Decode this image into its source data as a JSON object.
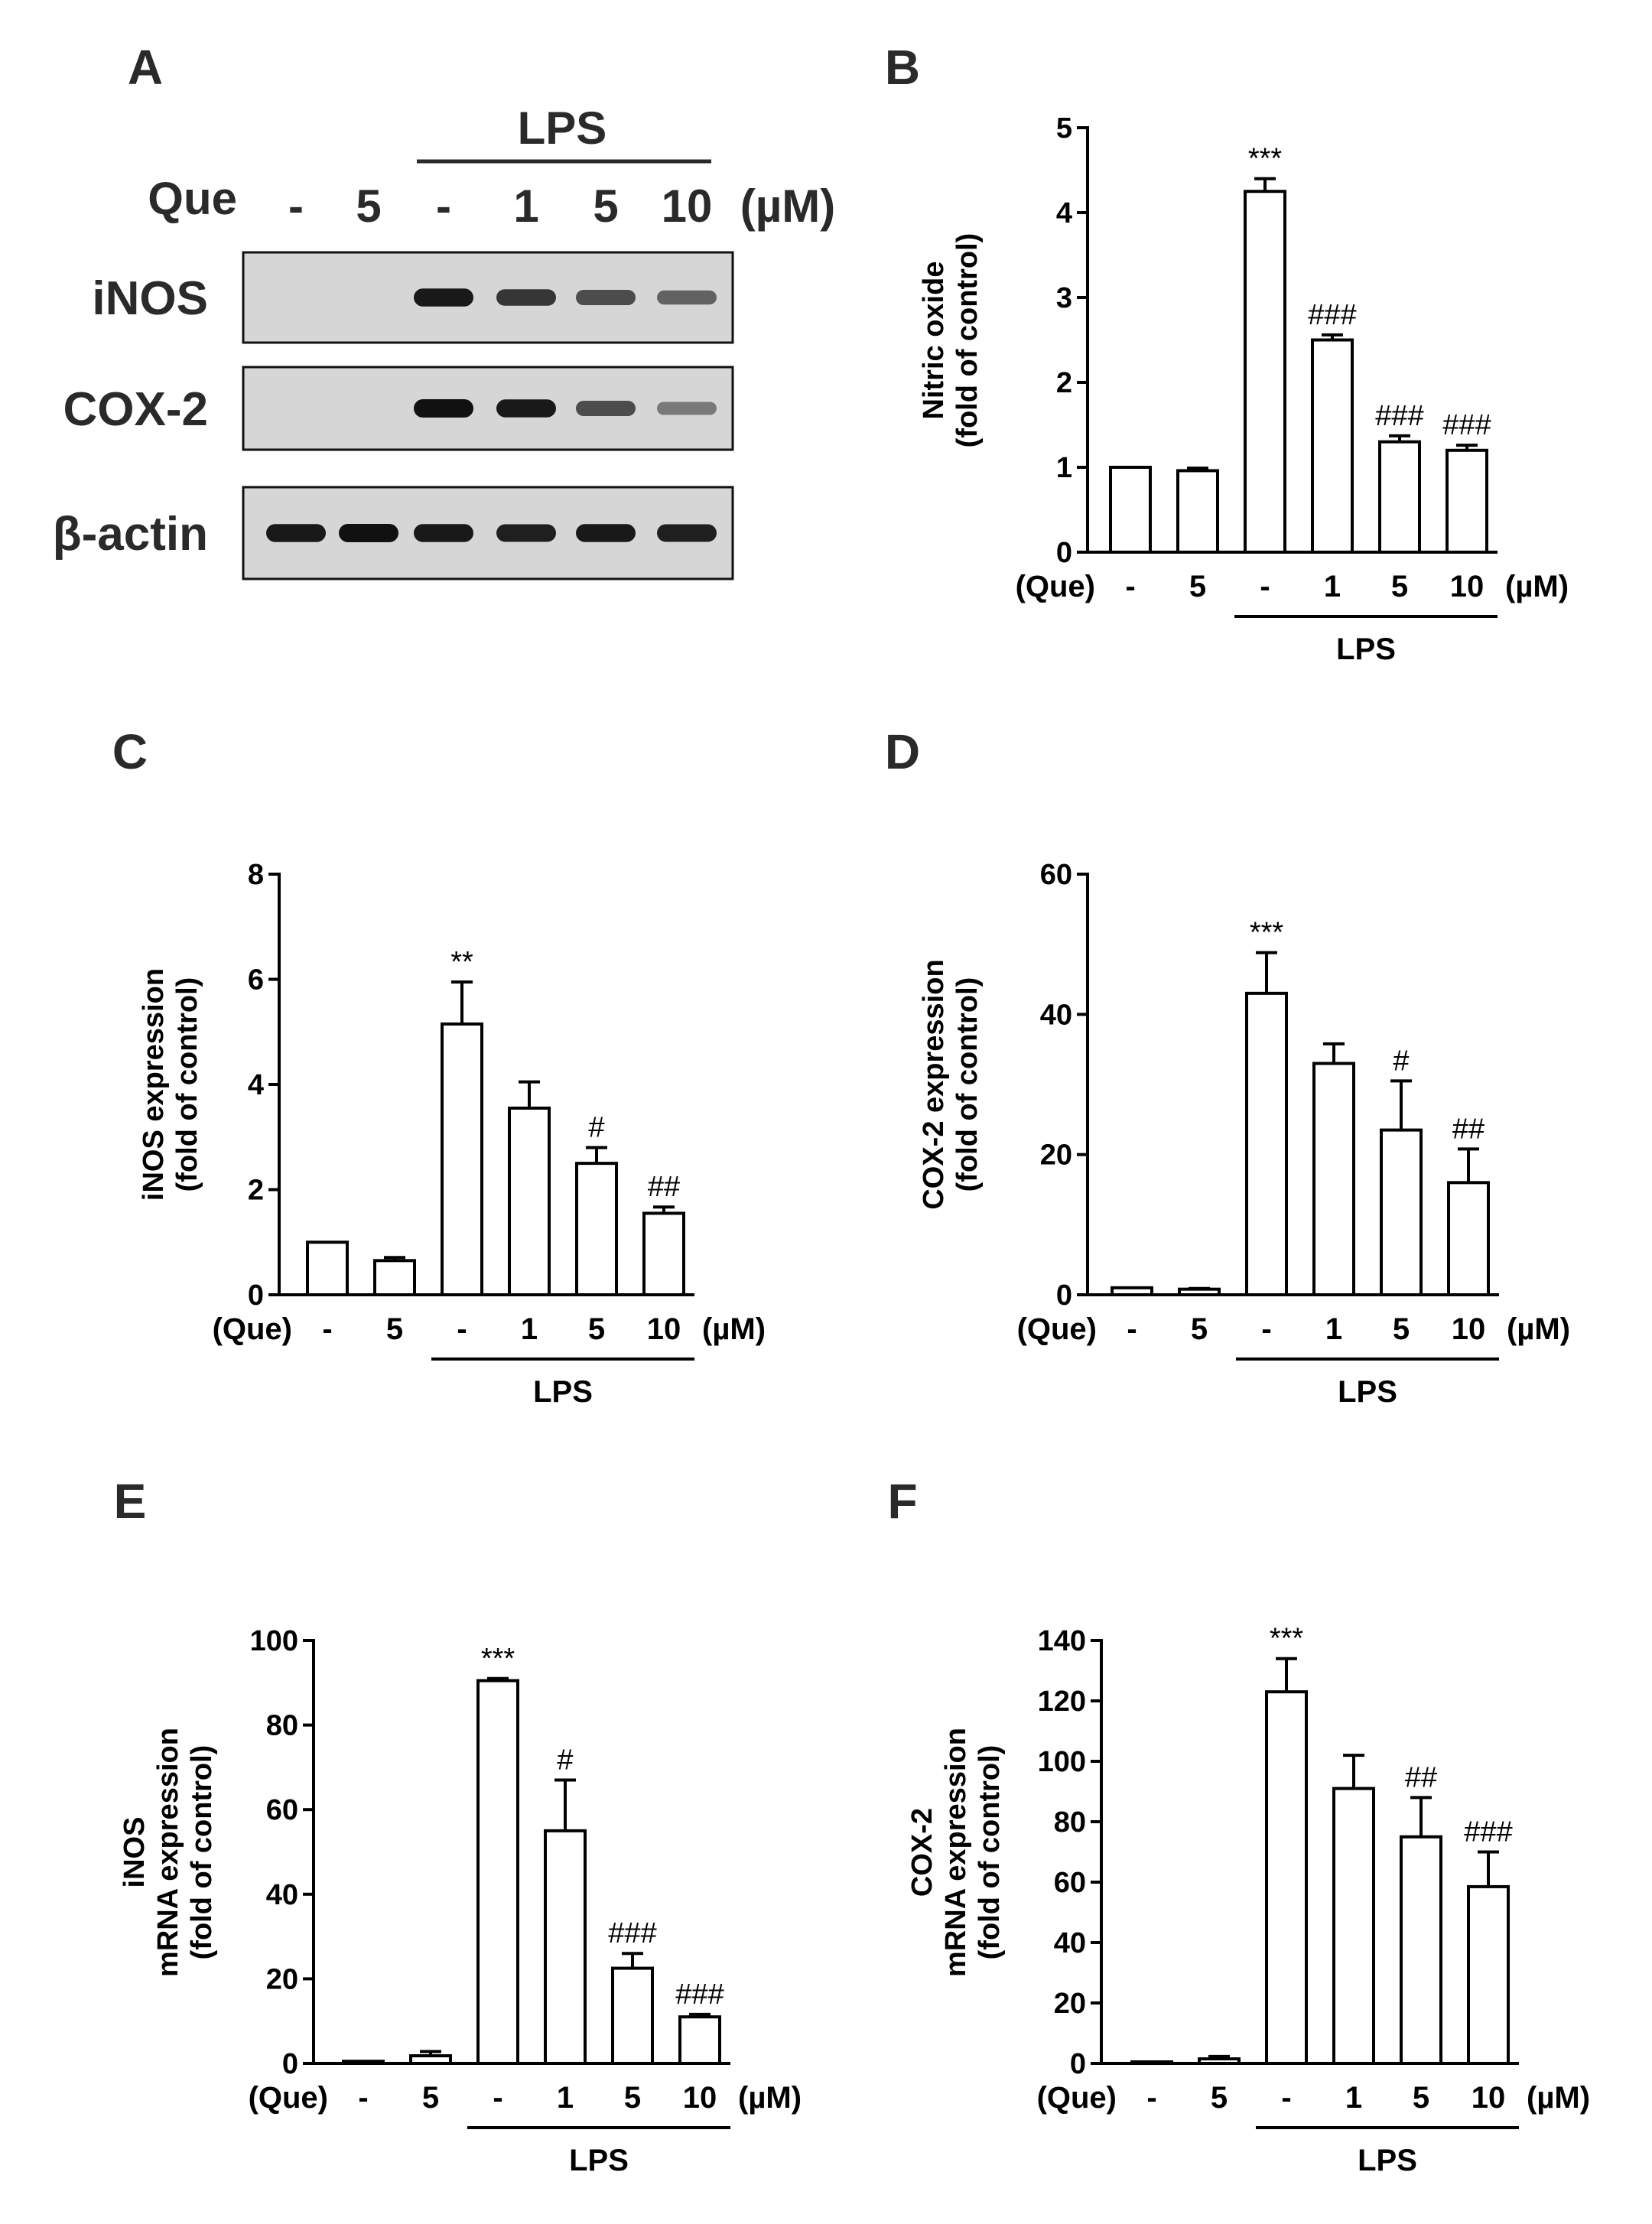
{
  "figure": {
    "panel_a": {
      "letter": "A",
      "lps_label": "LPS",
      "que_label": "Que",
      "lanes": [
        "-",
        "5",
        "-",
        "1",
        "5",
        "10"
      ],
      "unit": "(µM)",
      "blots": [
        {
          "name": "iNOS",
          "intensity": [
            0.0,
            0.0,
            0.95,
            0.75,
            0.6,
            0.45
          ]
        },
        {
          "name": "COX-2",
          "intensity": [
            0.0,
            0.0,
            1.0,
            0.95,
            0.6,
            0.3
          ]
        },
        {
          "name": "β-actin",
          "intensity": [
            0.95,
            1.0,
            0.95,
            0.9,
            0.95,
            0.9
          ]
        }
      ]
    }
  },
  "chart_data": [
    {
      "panel": "B",
      "type": "bar",
      "ylabel": [
        "Nitric oxide",
        "(fold of control)"
      ],
      "ylim": [
        0,
        5
      ],
      "yticks": [
        0,
        1,
        2,
        3,
        4,
        5
      ],
      "categories": [
        "-",
        "5",
        "-",
        "1",
        "5",
        "10"
      ],
      "group_label": "(Que)",
      "unit": "(µM)",
      "treatment_label": "LPS",
      "values": [
        1.0,
        0.96,
        4.25,
        2.5,
        1.3,
        1.2
      ],
      "errors": [
        0.0,
        0.03,
        0.15,
        0.06,
        0.07,
        0.06
      ],
      "significance": [
        "",
        "",
        "***",
        "###",
        "###",
        "###"
      ]
    },
    {
      "panel": "C",
      "type": "bar",
      "ylabel": [
        "iNOS expression",
        "(fold of control)"
      ],
      "ylim": [
        0,
        8
      ],
      "yticks": [
        0,
        2,
        4,
        6,
        8
      ],
      "categories": [
        "-",
        "5",
        "-",
        "1",
        "5",
        "10"
      ],
      "group_label": "(Que)",
      "unit": "(µM)",
      "treatment_label": "LPS",
      "values": [
        1.0,
        0.65,
        5.15,
        3.55,
        2.5,
        1.55
      ],
      "errors": [
        0.0,
        0.06,
        0.8,
        0.5,
        0.3,
        0.12
      ],
      "significance": [
        "",
        "",
        "**",
        "",
        "#",
        "##"
      ]
    },
    {
      "panel": "D",
      "type": "bar",
      "ylabel": [
        "COX-2 expression",
        "(fold of control)"
      ],
      "ylim": [
        0,
        60
      ],
      "yticks": [
        0,
        20,
        40,
        60
      ],
      "categories": [
        "-",
        "5",
        "-",
        "1",
        "5",
        "10"
      ],
      "group_label": "(Que)",
      "unit": "(µM)",
      "treatment_label": "LPS",
      "values": [
        1.0,
        0.8,
        43.0,
        33.0,
        23.5,
        16.0
      ],
      "errors": [
        0.0,
        0.1,
        5.8,
        2.8,
        7.0,
        4.8
      ],
      "significance": [
        "",
        "",
        "***",
        "",
        "#",
        "##"
      ]
    },
    {
      "panel": "E",
      "type": "bar",
      "ylabel": [
        "iNOS",
        "mRNA expression",
        "(fold of control)"
      ],
      "ylim": [
        0,
        100
      ],
      "yticks": [
        0,
        20,
        40,
        60,
        80,
        100
      ],
      "categories": [
        "-",
        "5",
        "-",
        "1",
        "5",
        "10"
      ],
      "group_label": "(Que)",
      "unit": "(µM)",
      "treatment_label": "LPS",
      "values": [
        0.5,
        1.8,
        90.5,
        55.0,
        22.5,
        11.0
      ],
      "errors": [
        0.0,
        1.0,
        0.5,
        12.0,
        3.5,
        0.6
      ],
      "significance": [
        "",
        "",
        "***",
        "#",
        "###",
        "###"
      ]
    },
    {
      "panel": "F",
      "type": "bar",
      "ylabel": [
        "COX-2",
        "mRNA expression",
        "(fold of control)"
      ],
      "ylim": [
        0,
        140
      ],
      "yticks": [
        0,
        20,
        40,
        60,
        80,
        100,
        120,
        140
      ],
      "categories": [
        "-",
        "5",
        "-",
        "1",
        "5",
        "10"
      ],
      "group_label": "(Que)",
      "unit": "(µM)",
      "treatment_label": "LPS",
      "values": [
        0.5,
        1.5,
        123.0,
        91.0,
        75.0,
        58.5
      ],
      "errors": [
        0.0,
        0.8,
        11.0,
        11.0,
        13.0,
        11.5
      ],
      "significance": [
        "",
        "",
        "***",
        "",
        "##",
        "###"
      ]
    }
  ]
}
